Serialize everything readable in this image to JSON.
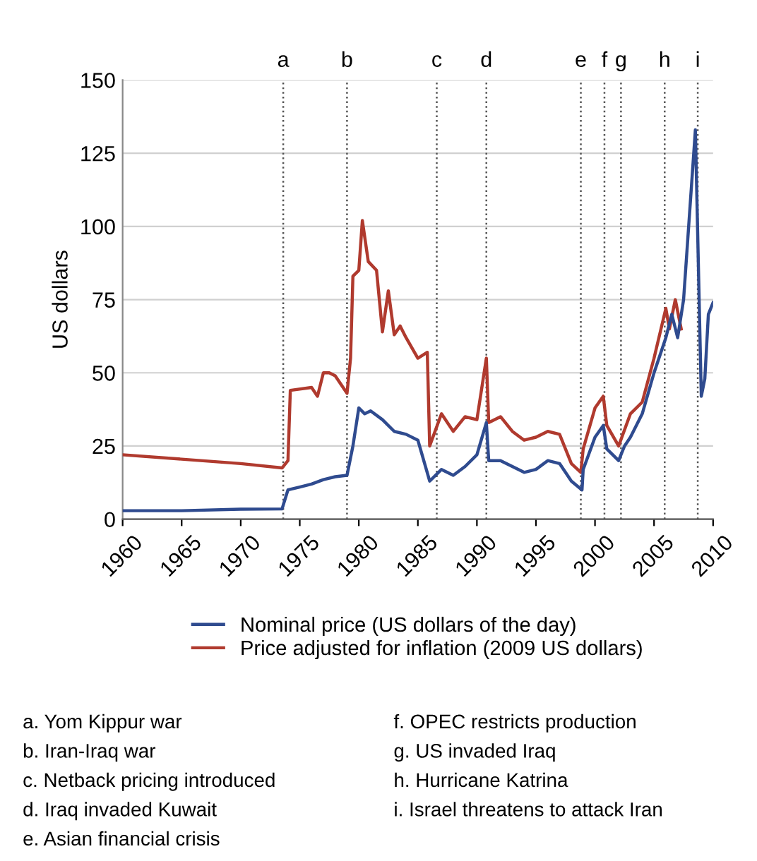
{
  "chart_data": {
    "type": "line",
    "ylabel": "US dollars",
    "xlim": [
      1960,
      2010
    ],
    "xticks": [
      1960,
      1965,
      1970,
      1975,
      1980,
      1985,
      1990,
      1995,
      2000,
      2005,
      2010
    ],
    "ylim": [
      0,
      150
    ],
    "yticks": [
      0,
      25,
      50,
      75,
      100,
      125,
      150
    ],
    "grid": "y",
    "legend": "bottom",
    "series": [
      {
        "name": "Nominal price (US dollars of the day)",
        "color": "#2f4b8f",
        "x": [
          1960,
          1965,
          1970,
          1973.5,
          1974,
          1975,
          1976,
          1977,
          1978,
          1979,
          1979.5,
          1980,
          1980.5,
          1981,
          1982,
          1983,
          1984,
          1985,
          1986,
          1987,
          1988,
          1989,
          1990,
          1990.8,
          1991,
          1992,
          1993,
          1994,
          1995,
          1996,
          1997,
          1998,
          1998.9,
          1999,
          2000,
          2000.7,
          2001,
          2002,
          2002.5,
          2003,
          2004,
          2005,
          2006,
          2006.5,
          2007,
          2007.5,
          2008.5,
          2009,
          2009.3,
          2009.6,
          2010
        ],
        "values": [
          2.9,
          2.9,
          3.4,
          3.5,
          10,
          11,
          12,
          13.5,
          14.5,
          15,
          25,
          38,
          36,
          37,
          34,
          30,
          29,
          27,
          13,
          17,
          15,
          18,
          22,
          33,
          20,
          20,
          18,
          16,
          17,
          20,
          19,
          13,
          10,
          17,
          28,
          32,
          24,
          20,
          25,
          28,
          36,
          50,
          62,
          70,
          62,
          75,
          133,
          42,
          48,
          70,
          74
        ]
      },
      {
        "name": "Price adjusted for inflation (2009 US dollars)",
        "color": "#b03a2e",
        "x": [
          1960,
          1965,
          1970,
          1973.5,
          1974,
          1974.2,
          1976,
          1976.5,
          1977,
          1977.5,
          1978,
          1979,
          1979.3,
          1979.5,
          1980,
          1980.3,
          1980.8,
          1981.5,
          1982,
          1982.5,
          1983,
          1983.5,
          1984,
          1985,
          1985.8,
          1986,
          1987,
          1988,
          1989,
          1990,
          1990.8,
          1991,
          1992,
          1993,
          1994,
          1995,
          1996,
          1997,
          1998,
          1998.8,
          1999,
          2000,
          2000.7,
          2001,
          2002,
          2003,
          2004,
          2005,
          2006,
          2006.3,
          2006.8,
          2007.3
        ],
        "values": [
          22,
          20.5,
          19,
          17.5,
          20,
          44,
          45,
          42,
          50,
          50,
          49,
          43,
          55,
          83,
          85,
          102,
          88,
          85,
          64,
          78,
          63,
          66,
          62,
          55,
          57,
          25,
          36,
          30,
          35,
          34,
          55,
          33,
          35,
          30,
          27,
          28,
          30,
          29,
          19,
          16,
          24,
          38,
          42,
          32,
          25,
          36,
          40,
          55,
          72,
          65,
          75,
          65
        ]
      }
    ],
    "ref_lines": [
      {
        "axis": "x",
        "value": 1973.6,
        "label": "a",
        "color": "#555555",
        "line_style": "dotted"
      },
      {
        "axis": "x",
        "value": 1979.0,
        "label": "b",
        "color": "#555555",
        "line_style": "dotted"
      },
      {
        "axis": "x",
        "value": 1986.6,
        "label": "c",
        "color": "#555555",
        "line_style": "dotted"
      },
      {
        "axis": "x",
        "value": 1990.8,
        "label": "d",
        "color": "#555555",
        "line_style": "dotted"
      },
      {
        "axis": "x",
        "value": 1998.8,
        "label": "e",
        "color": "#555555",
        "line_style": "dotted"
      },
      {
        "axis": "x",
        "value": 2000.8,
        "label": "f",
        "color": "#555555",
        "line_style": "dotted"
      },
      {
        "axis": "x",
        "value": 2002.2,
        "label": "g",
        "color": "#555555",
        "line_style": "dotted"
      },
      {
        "axis": "x",
        "value": 2005.9,
        "label": "h",
        "color": "#555555",
        "line_style": "dotted"
      },
      {
        "axis": "x",
        "value": 2008.7,
        "label": "i",
        "color": "#555555",
        "line_style": "dotted"
      }
    ],
    "annotations": [
      "a. Yom Kippur war",
      "b. Iran-Iraq war",
      "c. Netback pricing introduced",
      "d. Iraq invaded Kuwait",
      "e. Asian financial crisis",
      "f. OPEC restricts production",
      "g. US invaded Iraq",
      "h. Hurricane Katrina",
      "i. Israel threatens to attack Iran"
    ]
  }
}
